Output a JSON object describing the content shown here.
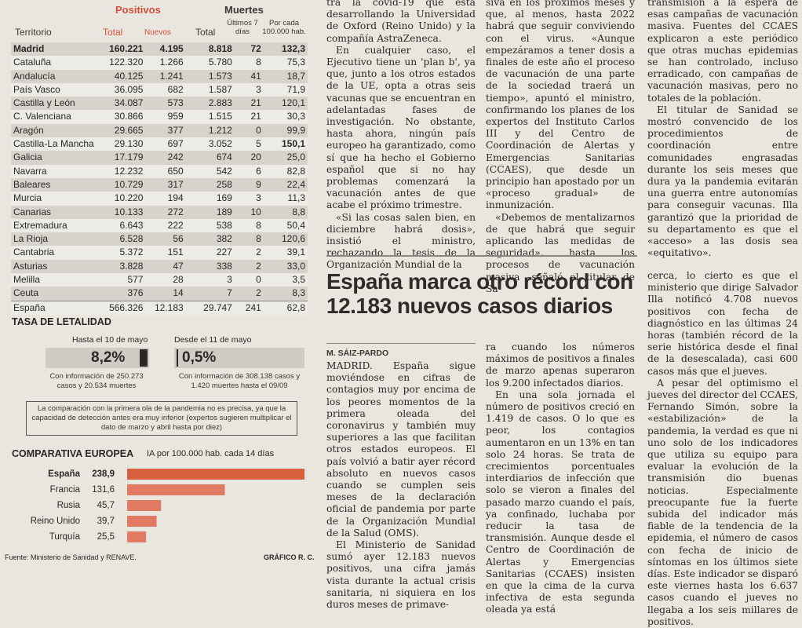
{
  "table": {
    "header_positivos": "Positivos",
    "header_muertes": "Muertes",
    "col_territorio": "Territorio",
    "col_total": "Total",
    "col_nuevos": "Nuevos",
    "col_total_muertes": "Total",
    "col_ultimos": "Últimos 7 días",
    "col_por_cada": "Por cada 100.000 hab.",
    "rows": [
      {
        "name": "Madrid",
        "total": "160.221",
        "nuevos": "4.195",
        "muertes": "8.818",
        "ult": "72",
        "tasa": "132,3",
        "bold": true
      },
      {
        "name": "Cataluña",
        "total": "122.320",
        "nuevos": "1.266",
        "muertes": "5.780",
        "ult": "8",
        "tasa": "75,3"
      },
      {
        "name": "Andalucía",
        "total": "40.125",
        "nuevos": "1.241",
        "muertes": "1.573",
        "ult": "41",
        "tasa": "18,7"
      },
      {
        "name": "País Vasco",
        "total": "36.095",
        "nuevos": "682",
        "muertes": "1.587",
        "ult": "3",
        "tasa": "71,9"
      },
      {
        "name": "Castilla y León",
        "total": "34.087",
        "nuevos": "573",
        "muertes": "2.883",
        "ult": "21",
        "tasa": "120,1"
      },
      {
        "name": "C. Valenciana",
        "total": "30.866",
        "nuevos": "959",
        "muertes": "1.515",
        "ult": "21",
        "tasa": "30,3"
      },
      {
        "name": "Aragón",
        "total": "29.665",
        "nuevos": "377",
        "muertes": "1.212",
        "ult": "0",
        "tasa": "99,9"
      },
      {
        "name": "Castilla-La Mancha",
        "total": "29.130",
        "nuevos": "697",
        "muertes": "3.052",
        "ult": "5",
        "tasa": "150,1"
      },
      {
        "name": "Galicia",
        "total": "17.179",
        "nuevos": "242",
        "muertes": "674",
        "ult": "20",
        "tasa": "25,0"
      },
      {
        "name": "Navarra",
        "total": "12.232",
        "nuevos": "650",
        "muertes": "542",
        "ult": "6",
        "tasa": "82,8"
      },
      {
        "name": "Baleares",
        "total": "10.729",
        "nuevos": "317",
        "muertes": "258",
        "ult": "9",
        "tasa": "22,4"
      },
      {
        "name": "Murcia",
        "total": "10.220",
        "nuevos": "194",
        "muertes": "169",
        "ult": "3",
        "tasa": "11,3"
      },
      {
        "name": "Canarias",
        "total": "10.133",
        "nuevos": "272",
        "muertes": "189",
        "ult": "10",
        "tasa": "8,8"
      },
      {
        "name": "Extremadura",
        "total": "6.643",
        "nuevos": "222",
        "muertes": "538",
        "ult": "8",
        "tasa": "50,4"
      },
      {
        "name": "La Rioja",
        "total": "6.528",
        "nuevos": "56",
        "muertes": "382",
        "ult": "8",
        "tasa": "120,6"
      },
      {
        "name": "Cantabria",
        "total": "5.372",
        "nuevos": "151",
        "muertes": "227",
        "ult": "2",
        "tasa": "39,1"
      },
      {
        "name": "Asturias",
        "total": "3.828",
        "nuevos": "47",
        "muertes": "338",
        "ult": "2",
        "tasa": "33,0"
      },
      {
        "name": "Melilla",
        "total": "577",
        "nuevos": "28",
        "muertes": "3",
        "ult": "0",
        "tasa": "3,5"
      },
      {
        "name": "Ceuta",
        "total": "376",
        "nuevos": "14",
        "muertes": "7",
        "ult": "2",
        "tasa": "8,3"
      },
      {
        "name": "España",
        "total": "566.326",
        "nuevos": "12.183",
        "muertes": "29.747",
        "ult": "241",
        "tasa": "62,8",
        "total_row": true
      }
    ]
  },
  "letalidad": {
    "title": "TASA DE LETALIDAD",
    "left_label": "Hasta el 10 de mayo",
    "left_value": "8,2%",
    "left_note": "Con información de 250.273 casos y 20.534 muertes",
    "right_label": "Desde el 11 de mayo",
    "right_value": "0,5%",
    "right_note": "Con información de 308.138 casos y 1.420 muertes hasta el 09/09",
    "disclaimer": "La comparación con la primera ola de la pandemia no es precisa, ya que la capacidad de detección antes era muy inferior (expertos sugieren multiplicar el dato de marzo y abril hasta por diez)"
  },
  "comparativa": {
    "title": "COMPARATIVA EUROPEA",
    "subtitle": "IA por 100.000 hab. cada 14 días",
    "bar_color": "#e07a62"
  },
  "chart_data": {
    "type": "bar",
    "title": "COMPARATIVA EUROPEA",
    "subtitle": "IA por 100.000 hab. cada 14 días",
    "categories": [
      "España",
      "Francia",
      "Rusia",
      "Reino Unido",
      "Turquía"
    ],
    "values": [
      238.9,
      131.6,
      45.7,
      39.7,
      25.5
    ],
    "value_labels": [
      "238,9",
      "131,6",
      "45,7",
      "39,7",
      "25,5"
    ],
    "xlim": [
      0,
      238.9
    ],
    "orientation": "horizontal"
  },
  "credits": {
    "fuente": "Fuente: Ministerio de Sanidad y RENAVE.",
    "grafico": "GRÁFICO R. C."
  },
  "article_top": {
    "col1": [
      {
        "text": "tra la covid-19 que está desarrollando la Universidad de Oxford (Reino Unido) y la compañía AstraZeneca.",
        "indent": false
      },
      {
        "text": "En cualquier caso, el Ejecutivo tiene un 'plan b', ya que, junto a los otros estados de la UE, opta a otras seis vacunas que se encuentran en adelantadas fases de investigación. No obstante, hasta ahora, ningún país europeo ha garantizado, como sí que ha hecho el Gobierno español que si no hay problemas comenzará la vacunación antes de que acabe el próximo trimestre.",
        "indent": true
      },
      {
        "text": "«Si las cosas salen bien, en diciembre habrá dosis», insistió el ministro, rechazando la tesis de la Organización Mundial de la",
        "indent": true
      }
    ],
    "col2": [
      {
        "text": "siva en los próximos meses y que, al menos, hasta 2022 habrá que seguir conviviendo con el virus. «Aunque empezáramos a tener dosis a finales de este año el proceso de vacunación de una parte de la sociedad traerá un tiempo», apuntó el ministro, confirmando los planes de los expertos del Instituto Carlos III y del Centro de Coordinación de Alertas y Emergencias Sanitarias (CCAES), que desde un principio han apostado por un «proceso gradual» de inmunización.",
        "indent": false
      },
      {
        "text": "«Debemos de mentalizarnos de que habrá que seguir aplicando las medidas de seguridad», hasta los procesos de vacunación masiva –señaló el titular de Sa-",
        "indent": true
      }
    ],
    "col3": [
      {
        "text": "transmisión a la espera de esas campañas de vacunación masiva. Fuentes del CCAES explicaron a este periódico que otras muchas epidemias se han controlado, incluso erradicado, con campañas de vacunación masivas, pero no totales de la población.",
        "indent": false
      },
      {
        "text": "El titular de Sanidad se mostró convencido de los procedimientos de coordinación entre comunidades engrasadas durante los seis meses que dura ya la pandemia evitarán una guerra entre autonomías para conseguir vacunas. Illa garantizó que la prioridad de su departamento es que el «acceso» a las dosis sea «equitativo».",
        "indent": true
      }
    ]
  },
  "article_main": {
    "headline": "España marca otro récord con 12.183 nuevos casos diarios",
    "byline": "M. SÁIZ-PARDO",
    "col1": [
      {
        "text": "MADRID. España sigue moviéndose en cifras de contagios muy por encima de los peores momentos de la primera oleada del coronavirus y también muy superiores a las que facilitan otros estados europeos. El país volvió a batir ayer récord absoluto en nuevos casos cuando se cumplen seis meses de la declaración oficial de pandemia por parte de la Organización Mundial de la Salud (OMS).",
        "indent": false
      },
      {
        "text": "El Ministerio de Sanidad sumó ayer 12.183 nuevos positivos, una cifra jamás vista durante la actual crisis sanitaria, ni siquiera en los duros meses de primave-",
        "indent": true
      }
    ],
    "col2": [
      {
        "text": "ra cuando los números máximos de positivos a finales de marzo apenas superaron los 9.200 infectados diarios.",
        "indent": false
      },
      {
        "text": "En una sola jornada el número de positivos creció en 1.419 de casos. O lo que es peor, los contagios aumentaron en un 13% en tan solo 24 horas. Se trata de crecimientos porcentuales interdiarios de infección que solo se vieron a finales del pasado marzo cuando el país, ya confinado, luchaba por reducir la tasa de transmisión. Aunque desde el Centro de Coordinación de Alertas y Emergencias Sanitarias (CCAES) insisten en que la cima de la curva infectiva de esta segunda oleada ya está",
        "indent": true
      }
    ],
    "col3": [
      {
        "text": "cerca, lo cierto es que el ministerio que dirige Salvador Illa notificó 4.708 nuevos positivos con fecha de diagnóstico en las últimas 24 horas (también récord de la serie histórica desde el final de la desescalada), casi 600 casos más que el jueves.",
        "indent": false
      },
      {
        "text": "A pesar del optimismo el jueves del director del CCAES, Fernando Simón, sobre la «estabilización» de la pandemia, la verdad es que ni uno solo de los indicadores que utiliza su equipo para evaluar la evolución de la transmisión dio buenas noticias. Especialmente preocupante fue la fuerte subida del indicador más fiable de la tendencia de la epidemia, el número de casos con fecha de inicio de síntomas en los últimos siete días. Este indicador se disparó este viernes hasta los 6.637 casos cuando el jueves no llegaba a los seis millares de positivos.",
        "indent": true
      }
    ]
  }
}
